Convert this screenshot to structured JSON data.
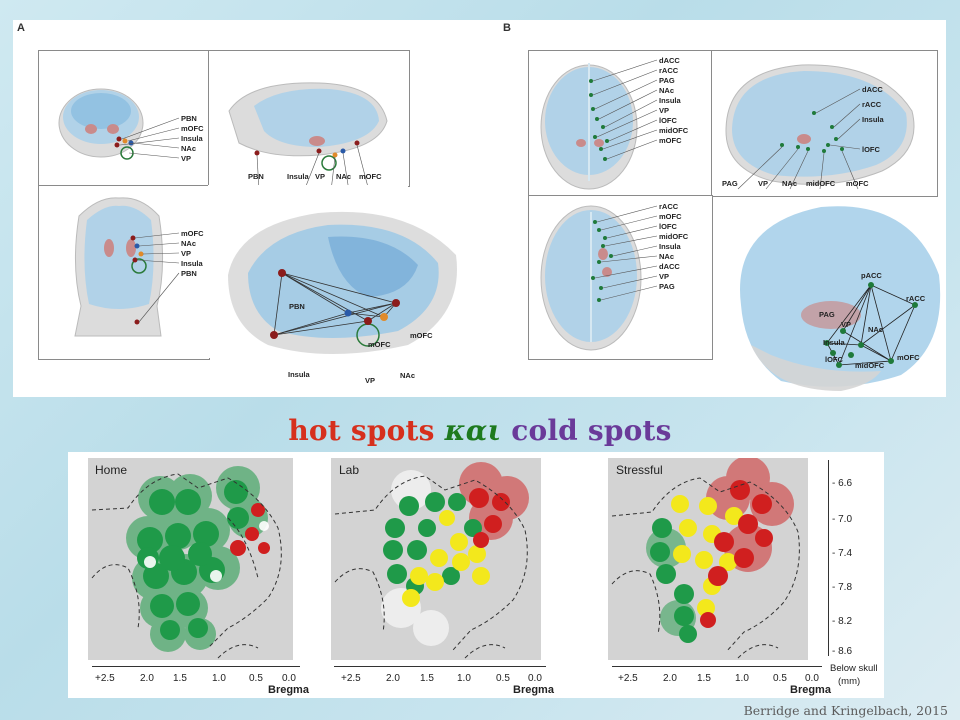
{
  "panel_a": {
    "letter": "A",
    "q1_labels": [
      "PBN",
      "mOFC",
      "Insula",
      "NAc",
      "VP"
    ],
    "q2_labels": [
      "PBN",
      "Insula",
      "VP",
      "NAc",
      "mOFC"
    ],
    "q3_labels": [
      "mOFC",
      "NAc",
      "VP",
      "Insula",
      "PBN"
    ],
    "q4_labels": [
      "PBN",
      "mOFC",
      "mOFC",
      "Insula",
      "VP",
      "NAc"
    ]
  },
  "panel_b": {
    "letter": "B",
    "q1_labels": [
      "dACC",
      "rACC",
      "PAG",
      "NAc",
      "Insula",
      "VP",
      "lOFC",
      "midOFC",
      "mOFC"
    ],
    "q2_labels_side": [
      "dACC",
      "rACC",
      "Insula",
      "lOFC"
    ],
    "q2_labels_bottom": [
      "PAG",
      "VP",
      "NAc",
      "midOFC",
      "mOFC"
    ],
    "q3_labels": [
      "rACC",
      "mOFC",
      "lOFC",
      "midOFC",
      "Insula",
      "NAc",
      "dACC",
      "VP",
      "PAG"
    ],
    "q4_labels": [
      "pACC",
      "rACC",
      "PAG",
      "VP",
      "NAc",
      "Insula",
      "lOFC",
      "midOFC",
      "mOFC"
    ]
  },
  "title": {
    "hot": "hot spots",
    "kai": "και",
    "cold": "cold spots"
  },
  "maps": [
    {
      "name": "Home"
    },
    {
      "name": "Lab"
    },
    {
      "name": "Stressful"
    }
  ],
  "x_ticks": [
    "+2.5",
    "2.0",
    "1.5",
    "1.0",
    "0.5",
    "0.0"
  ],
  "x_axis_title": "Bregma",
  "y_ticks": [
    "- 6.6",
    "- 7.0",
    "- 7.4",
    "- 7.8",
    "- 8.2",
    "- 8.6"
  ],
  "y_axis_title_1": "Below skull",
  "y_axis_title_2": "(mm)",
  "citation": "Berridge and Kringelbach, 2015",
  "colors": {
    "hot": "#d6301d",
    "kai": "#1e7a1e",
    "cold": "#6a3a99",
    "green_spot": "#1f9a49",
    "yellow_spot": "#f3e81c",
    "red_spot": "#d01f1f",
    "brain_blue": "#8fc4e2"
  }
}
